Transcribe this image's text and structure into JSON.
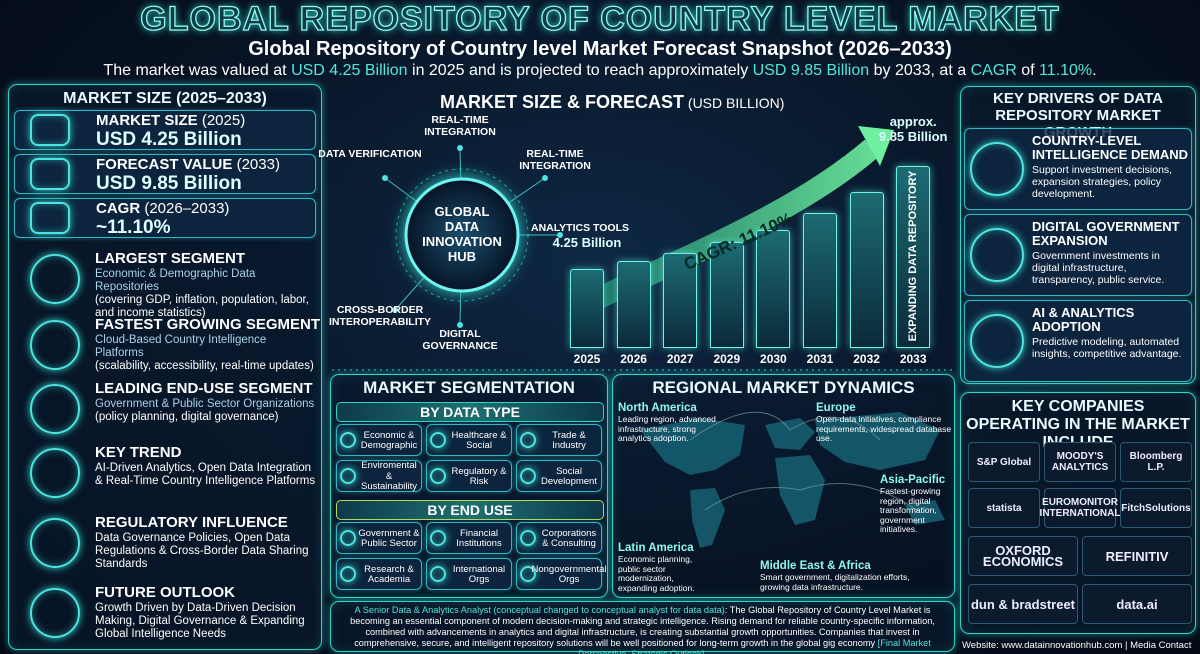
{
  "header": {
    "title": "GLOBAL REPOSITORY OF COUNTRY LEVEL MARKET",
    "subtitle": "Global Repository of Country level Market Forecast Snapshot (2026–2033)",
    "intro": [
      {
        "text": "The market was valued at ",
        "accent": false
      },
      {
        "text": "USD 4.25 Billion",
        "accent": true
      },
      {
        "text": " in 2025 and is projected to reach approximately ",
        "accent": false
      },
      {
        "text": "USD 9.85 Billion",
        "accent": true
      },
      {
        "text": " by 2033, at a ",
        "accent": false
      },
      {
        "text": "CAGR",
        "accent": true
      },
      {
        "text": " of ",
        "accent": false
      },
      {
        "text": "11.10%",
        "accent": true
      },
      {
        "text": ".",
        "accent": false
      }
    ]
  },
  "market_size": {
    "title": "MARKET SIZE (2025–2033)",
    "stats": [
      {
        "label": "MARKET SIZE",
        "period": " (2025)",
        "value": "USD 4.25 Billion"
      },
      {
        "label": "FORECAST VALUE",
        "period": " (2033)",
        "value": "USD 9.85 Billion"
      },
      {
        "label": "CAGR",
        "period": " (2026–2033)",
        "value": "~11.10%"
      }
    ],
    "segments": [
      {
        "title": "LARGEST SEGMENT",
        "lines": [
          "Economic & Demographic Data Repositories",
          "(covering GDP, inflation, population, labor, and income statistics)"
        ]
      },
      {
        "title": "FASTEST GROWING SEGMENT",
        "lines": [
          "Cloud-Based Country Intelligence Platforms",
          "(scalability, accessibility, real-time updates)"
        ]
      },
      {
        "title": "LEADING END-USE SEGMENT",
        "lines": [
          "Government & Public Sector Organizations",
          "(policy planning, digital governance)"
        ]
      },
      {
        "title": "KEY TREND",
        "lines": [
          "AI-Driven Analytics, Open Data Integration & Real-Time Country Intelligence Platforms"
        ]
      },
      {
        "title": "REGULATORY INFLUENCE",
        "lines": [
          "Data Governance Policies, Open Data Regulations & Cross-Border Data Sharing Standards"
        ]
      },
      {
        "title": "FUTURE OUTLOOK",
        "lines": [
          "Growth Driven by Data-Driven Decision Making, Digital Governance & Expanding Global Intelligence Needs"
        ]
      }
    ]
  },
  "forecast": {
    "title": "MARKET SIZE & FORECAST",
    "unit": " (USD BILLION)",
    "hub": {
      "center": "GLOBAL DATA INNOVATION HUB",
      "nodes": [
        "REAL-TIME INTEGRATION",
        "DATA VERIFICATION",
        "REAL-TIME INTEGRATION",
        "ANALYTICS TOOLS",
        "DIGITAL GOVERNANCE",
        "CROSS-BORDER INTEROPERABILITY"
      ]
    }
  },
  "chart_data": {
    "type": "bar",
    "categories": [
      "2025",
      "2026",
      "2027",
      "2029",
      "2030",
      "2031",
      "2032",
      "2033"
    ],
    "values": [
      4.25,
      4.72,
      5.13,
      5.71,
      6.37,
      7.28,
      8.45,
      9.85
    ],
    "value_labels": [
      "4.25 Billion",
      null,
      null,
      null,
      null,
      null,
      null,
      "approx. 9.85 Billion"
    ],
    "annotation": "CAGR: 11.10%",
    "side_label": "EXPANDING DATA REPOSITORY"
  },
  "segmentation": {
    "title": "MARKET SEGMENTATION",
    "groups": [
      {
        "title": "BY DATA TYPE",
        "items": [
          "Economic & Demographic",
          "Healthcare & Social",
          "Trade & Industry",
          "Enviromental & Sustainability",
          "Regulatory & Risk",
          "Social Development"
        ]
      },
      {
        "title": "BY END USE",
        "items": [
          "Government & Public Sector",
          "Financial Institutions",
          "Corporations & Consulting",
          "Research & Academia",
          "International Orgs",
          "Nongovernmental Orgs"
        ]
      }
    ]
  },
  "regional": {
    "title": "REGIONAL MARKET DYNAMICS",
    "regions": [
      {
        "name": "North America",
        "text": "Leading region, advanced infrastructure, strong analytics adoption."
      },
      {
        "name": "Europe",
        "text": "Open-data initiatives, compliance requirements, widespread database use."
      },
      {
        "name": "Asia-Pacific",
        "text": "Fastest-growing region, digital transformation, government initiatives."
      },
      {
        "name": "Latin America",
        "text": "Economic planning, public sector modernization, expanding adoption."
      },
      {
        "name": "Middle East & Africa",
        "text": "Smart government, digitalization efforts, growing data infrastructure."
      }
    ]
  },
  "note": [
    {
      "text": "A Senior Data & Analytics Analyst (conceptual changed to conceptual analyst for data data)",
      "accent": true
    },
    {
      "text": ": The Global Repository of Country Level Market is becoming an essential component of modern decision-making and strategic intelligence. Rising demand for reliable country-specific information, combined with advancements in analytics and digital infrastructure, is creating substantial growth opportunities. Companies that invest in comprehensive, secure, and intelligent repository solutions will be well positioned for long-term growth in the global gig economy ",
      "accent": false
    },
    {
      "text": "[Final Market Perspective, Strategic Outlook]",
      "accent": true
    },
    {
      "text": ".",
      "accent": false
    }
  ],
  "drivers": {
    "title": "KEY DRIVERS OF DATA REPOSITORY MARKET GROWTH",
    "items": [
      {
        "title": "COUNTRY-LEVEL INTELLIGENCE DEMAND",
        "text": "Support investment decisions, expansion strategies, policy development."
      },
      {
        "title": "DIGITAL GOVERNMENT EXPANSION",
        "text": "Government investments in digital infrastructure, transparency, public service."
      },
      {
        "title": "AI & ANALYTICS ADOPTION",
        "text": "Predictive modeling, automated insights, competitive advantage."
      }
    ]
  },
  "companies": {
    "title": "KEY COMPANIES OPERATING IN THE MARKET INCLUDE",
    "rows": [
      [
        "S&P Global",
        "MOODY'S ANALYTICS",
        "Bloomberg L.P."
      ],
      [
        "statista",
        "EUROMONITOR INTERNATIONAL",
        "FitchSolutions"
      ],
      [
        "OXFORD ECONOMICS",
        "REFINITIV"
      ],
      [
        "dun & bradstreet",
        "data.ai"
      ]
    ]
  },
  "footer": "Website: www.datainnovationhub.com | Media Contact"
}
